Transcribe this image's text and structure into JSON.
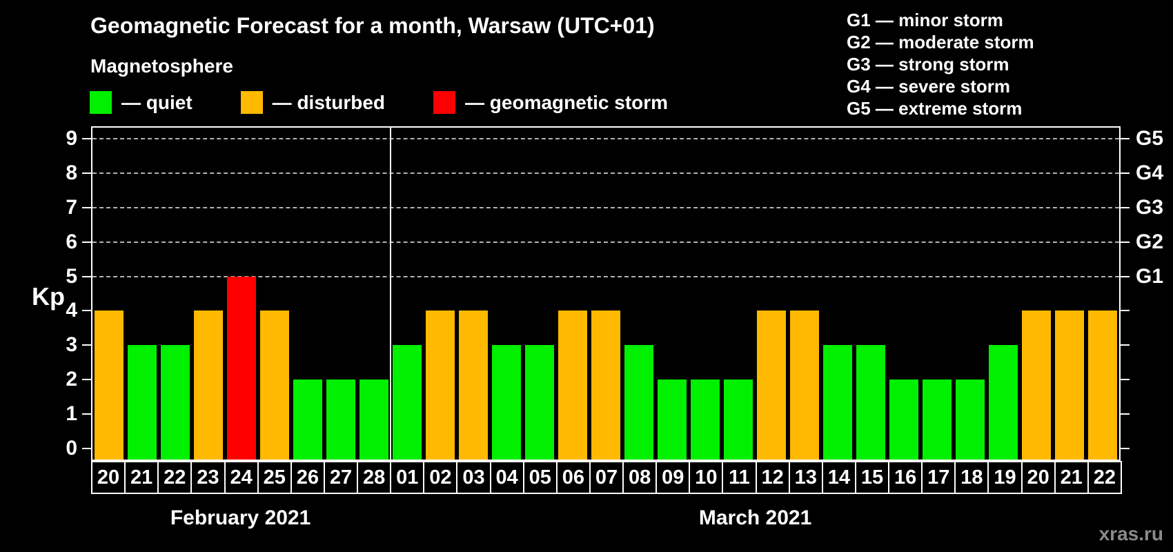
{
  "title": "Geomagnetic Forecast for a month, Warsaw (UTC+01)",
  "subtitle": "Magnetosphere",
  "legend": [
    {
      "name": "quiet",
      "label": "— quiet",
      "status": "quiet"
    },
    {
      "name": "disturbed",
      "label": "— disturbed",
      "status": "disturbed"
    },
    {
      "name": "storm",
      "label": "— geomagnetic storm",
      "status": "storm"
    }
  ],
  "g_legend": [
    {
      "text": "G1 — minor storm"
    },
    {
      "text": "G2 — moderate storm"
    },
    {
      "text": "G3 — strong storm"
    },
    {
      "text": "G4 — severe storm"
    },
    {
      "text": "G5 — extreme storm"
    }
  ],
  "colors": {
    "quiet": "#00f000",
    "disturbed": "#ffb900",
    "storm": "#ff0000",
    "gridline": "#b3b3b3",
    "axis": "#ffffff",
    "watermark_text": "#8a8a8a"
  },
  "watermark": "xras.ru",
  "chart_data": {
    "type": "bar",
    "title": "Geomagnetic Forecast for a month, Warsaw (UTC+01)",
    "ylabel": "Kp",
    "ylim": [
      0,
      9
    ],
    "yticks": [
      0,
      1,
      2,
      3,
      4,
      5,
      6,
      7,
      8,
      9
    ],
    "grid": "horizontal dashed lines at Kp 5–9 (G1–G5 levels) only",
    "right_axis_labels": [
      {
        "kp": 5,
        "label": "G1"
      },
      {
        "kp": 6,
        "label": "G2"
      },
      {
        "kp": 7,
        "label": "G3"
      },
      {
        "kp": 8,
        "label": "G4"
      },
      {
        "kp": 9,
        "label": "G5"
      }
    ],
    "months": [
      {
        "label": "February 2021",
        "days": 9
      },
      {
        "label": "March 2021",
        "days": 22
      }
    ],
    "categories": [
      "20",
      "21",
      "22",
      "23",
      "24",
      "25",
      "26",
      "27",
      "28",
      "01",
      "02",
      "03",
      "04",
      "05",
      "06",
      "07",
      "08",
      "09",
      "10",
      "11",
      "12",
      "13",
      "14",
      "15",
      "16",
      "17",
      "18",
      "19",
      "20",
      "21",
      "22"
    ],
    "values": [
      4,
      3,
      3,
      4,
      5,
      4,
      2,
      2,
      2,
      3,
      4,
      4,
      3,
      3,
      4,
      4,
      3,
      2,
      2,
      2,
      4,
      4,
      3,
      3,
      2,
      2,
      2,
      3,
      4,
      4,
      4
    ],
    "statuses": [
      "disturbed",
      "quiet",
      "quiet",
      "disturbed",
      "storm",
      "disturbed",
      "quiet",
      "quiet",
      "quiet",
      "quiet",
      "disturbed",
      "disturbed",
      "quiet",
      "quiet",
      "disturbed",
      "disturbed",
      "quiet",
      "quiet",
      "quiet",
      "quiet",
      "disturbed",
      "disturbed",
      "quiet",
      "quiet",
      "quiet",
      "quiet",
      "quiet",
      "quiet",
      "disturbed",
      "disturbed",
      "disturbed"
    ]
  }
}
